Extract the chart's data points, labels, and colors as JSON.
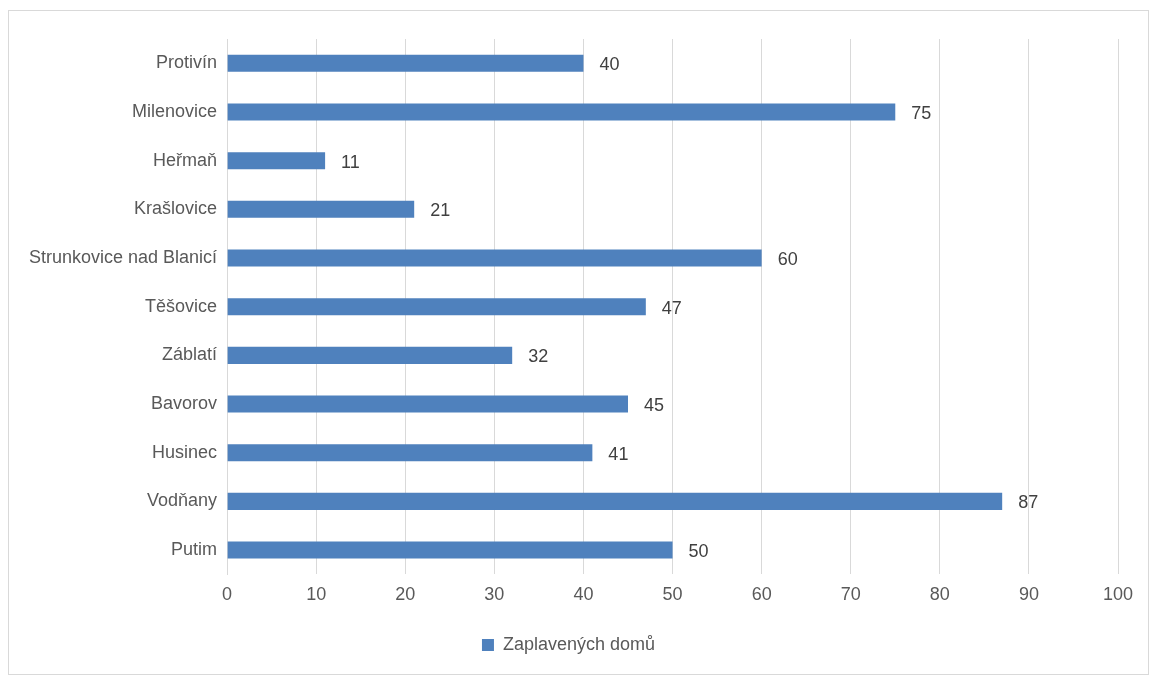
{
  "chart_data": {
    "type": "bar",
    "orientation": "horizontal",
    "categories": [
      "Protivín",
      "Milenovice",
      "Heřmaň",
      "Krašlovice",
      "Strunkovice nad Blanicí",
      "Těšovice",
      "Záblatí",
      "Bavorov",
      "Husinec",
      "Vodňany",
      "Putim"
    ],
    "series": [
      {
        "name": "Zaplavených domů",
        "color": "#4f81bd",
        "values": [
          40,
          75,
          11,
          21,
          60,
          47,
          32,
          45,
          41,
          87,
          50
        ]
      }
    ],
    "xlim": [
      0,
      100
    ],
    "xticks": [
      0,
      10,
      20,
      30,
      40,
      50,
      60,
      70,
      80,
      90,
      100
    ],
    "grid": "x",
    "legend": "bottom",
    "data_labels": true
  }
}
